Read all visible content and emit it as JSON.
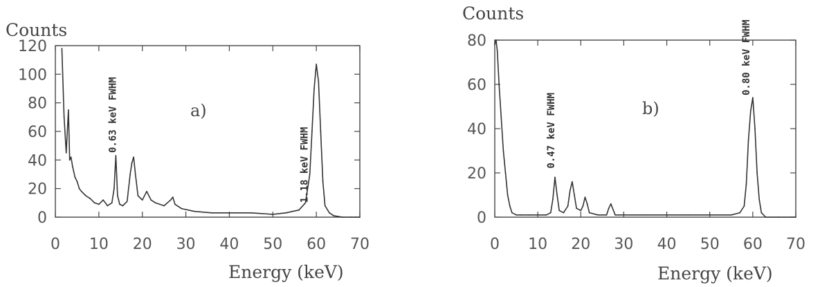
{
  "chart_data": [
    {
      "type": "line",
      "panel_label": "a)",
      "xlabel": "Energy (keV)",
      "ylabel": "Counts",
      "xlim": [
        0,
        70
      ],
      "ylim": [
        0,
        120
      ],
      "xticks": [
        "0",
        "10",
        "20",
        "30",
        "40",
        "50",
        "60",
        "70"
      ],
      "yticks": [
        "0",
        "20",
        "40",
        "60",
        "80",
        "100",
        "120"
      ],
      "grid": false,
      "annotations": [
        {
          "text": "0.63 keV FWHM",
          "x": 13.9,
          "y": 45
        },
        {
          "text": "1.18 keV FWHM",
          "x": 58.0,
          "y": 10
        }
      ],
      "series": [
        {
          "x": [
            1.5,
            2,
            2.5,
            3,
            3.3,
            3.6,
            4,
            4.5,
            5,
            5.5,
            6,
            7,
            8,
            9,
            10,
            11,
            12,
            13,
            13.5,
            13.9,
            14.3,
            14.8,
            15.5,
            16.5,
            17.2,
            17.6,
            18.0,
            18.4,
            19,
            20,
            21,
            22,
            23,
            25,
            26.5,
            27,
            27.5,
            29,
            32,
            36,
            40,
            45,
            50,
            53,
            56,
            57.5,
            58.5,
            59,
            59.5,
            60,
            60.5,
            61,
            61.5,
            62,
            63,
            64,
            66,
            68,
            70
          ],
          "y": [
            118,
            70,
            45,
            75,
            40,
            42,
            35,
            28,
            25,
            20,
            18,
            15,
            13,
            10,
            9,
            12,
            8,
            10,
            20,
            43,
            15,
            9,
            8,
            11,
            30,
            38,
            42,
            30,
            15,
            12,
            18,
            12,
            10,
            8,
            12,
            14,
            9,
            6,
            4,
            3,
            3,
            3,
            2,
            3,
            5,
            10,
            30,
            60,
            90,
            107,
            95,
            60,
            25,
            8,
            3,
            1,
            0,
            0,
            0
          ]
        }
      ]
    },
    {
      "type": "line",
      "panel_label": "b)",
      "xlabel": "Energy (keV)",
      "ylabel": "Counts",
      "xlim": [
        0,
        70
      ],
      "ylim": [
        0,
        80
      ],
      "xticks": [
        "0",
        "10",
        "20",
        "30",
        "40",
        "50",
        "60",
        "70"
      ],
      "yticks": [
        "0",
        "20",
        "40",
        "60",
        "80"
      ],
      "grid": false,
      "annotations": [
        {
          "text": "0.47 keV FWHM",
          "x": 13.8,
          "y": 22
        },
        {
          "text": "0.80 keV FWHM",
          "x": 59.2,
          "y": 55
        }
      ],
      "series": [
        {
          "x": [
            0,
            0.3,
            0.6,
            1.0,
            1.5,
            2,
            2.5,
            3,
            3.5,
            4,
            5,
            6,
            8,
            10,
            12,
            13,
            13.5,
            14.0,
            14.5,
            15,
            16,
            17,
            17.5,
            18.0,
            18.5,
            19,
            20,
            20.5,
            21.0,
            21.5,
            22,
            24,
            26,
            26.5,
            27,
            28,
            30,
            35,
            40,
            45,
            50,
            55,
            57,
            58,
            58.5,
            59,
            59.5,
            60,
            60.5,
            61,
            61.5,
            62,
            63,
            66,
            70
          ],
          "y": [
            78,
            80,
            75,
            60,
            45,
            30,
            20,
            10,
            5,
            2,
            1,
            1,
            1,
            1,
            1,
            2,
            8,
            18,
            10,
            3,
            2,
            5,
            12,
            16,
            10,
            4,
            3,
            5,
            9,
            6,
            2,
            1,
            1,
            4,
            6,
            1,
            1,
            1,
            1,
            1,
            1,
            1,
            2,
            5,
            15,
            35,
            48,
            54,
            40,
            20,
            8,
            2,
            0,
            0,
            0
          ]
        }
      ]
    }
  ]
}
